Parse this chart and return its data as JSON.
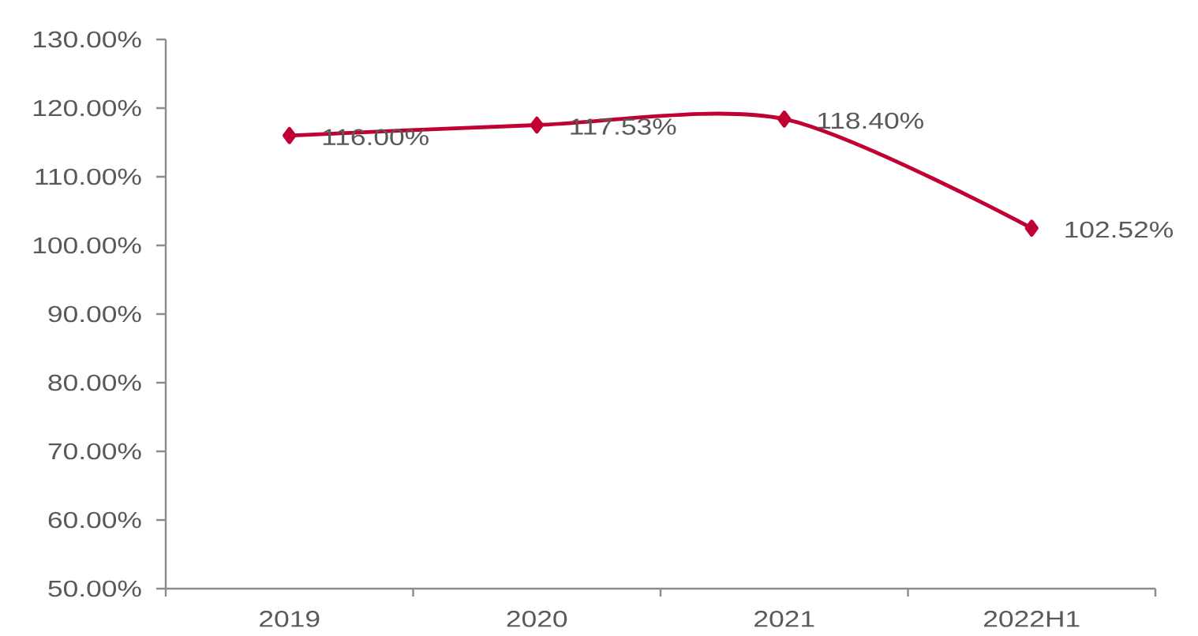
{
  "chart_data": {
    "type": "line",
    "categories": [
      "2019",
      "2020",
      "2021",
      "2022H1"
    ],
    "values": [
      116.0,
      117.53,
      118.4,
      102.52
    ],
    "color": "#c00032",
    "marker": "diamond",
    "line_style": "solid",
    "value_labels": [
      "116.00%",
      "117.53%",
      "118.40%",
      "102.52%"
    ],
    "ylim": [
      50,
      130
    ],
    "yticks": [
      {
        "value": 50,
        "label": "50.00%"
      },
      {
        "value": 60,
        "label": "60.00%"
      },
      {
        "value": 70,
        "label": "70.00%"
      },
      {
        "value": 80,
        "label": "80.00%"
      },
      {
        "value": 90,
        "label": "90.00%"
      },
      {
        "value": 100,
        "label": "100.00%"
      },
      {
        "value": 110,
        "label": "110.00%"
      },
      {
        "value": 120,
        "label": "120.00%"
      },
      {
        "value": 130,
        "label": "130.00%"
      }
    ]
  }
}
